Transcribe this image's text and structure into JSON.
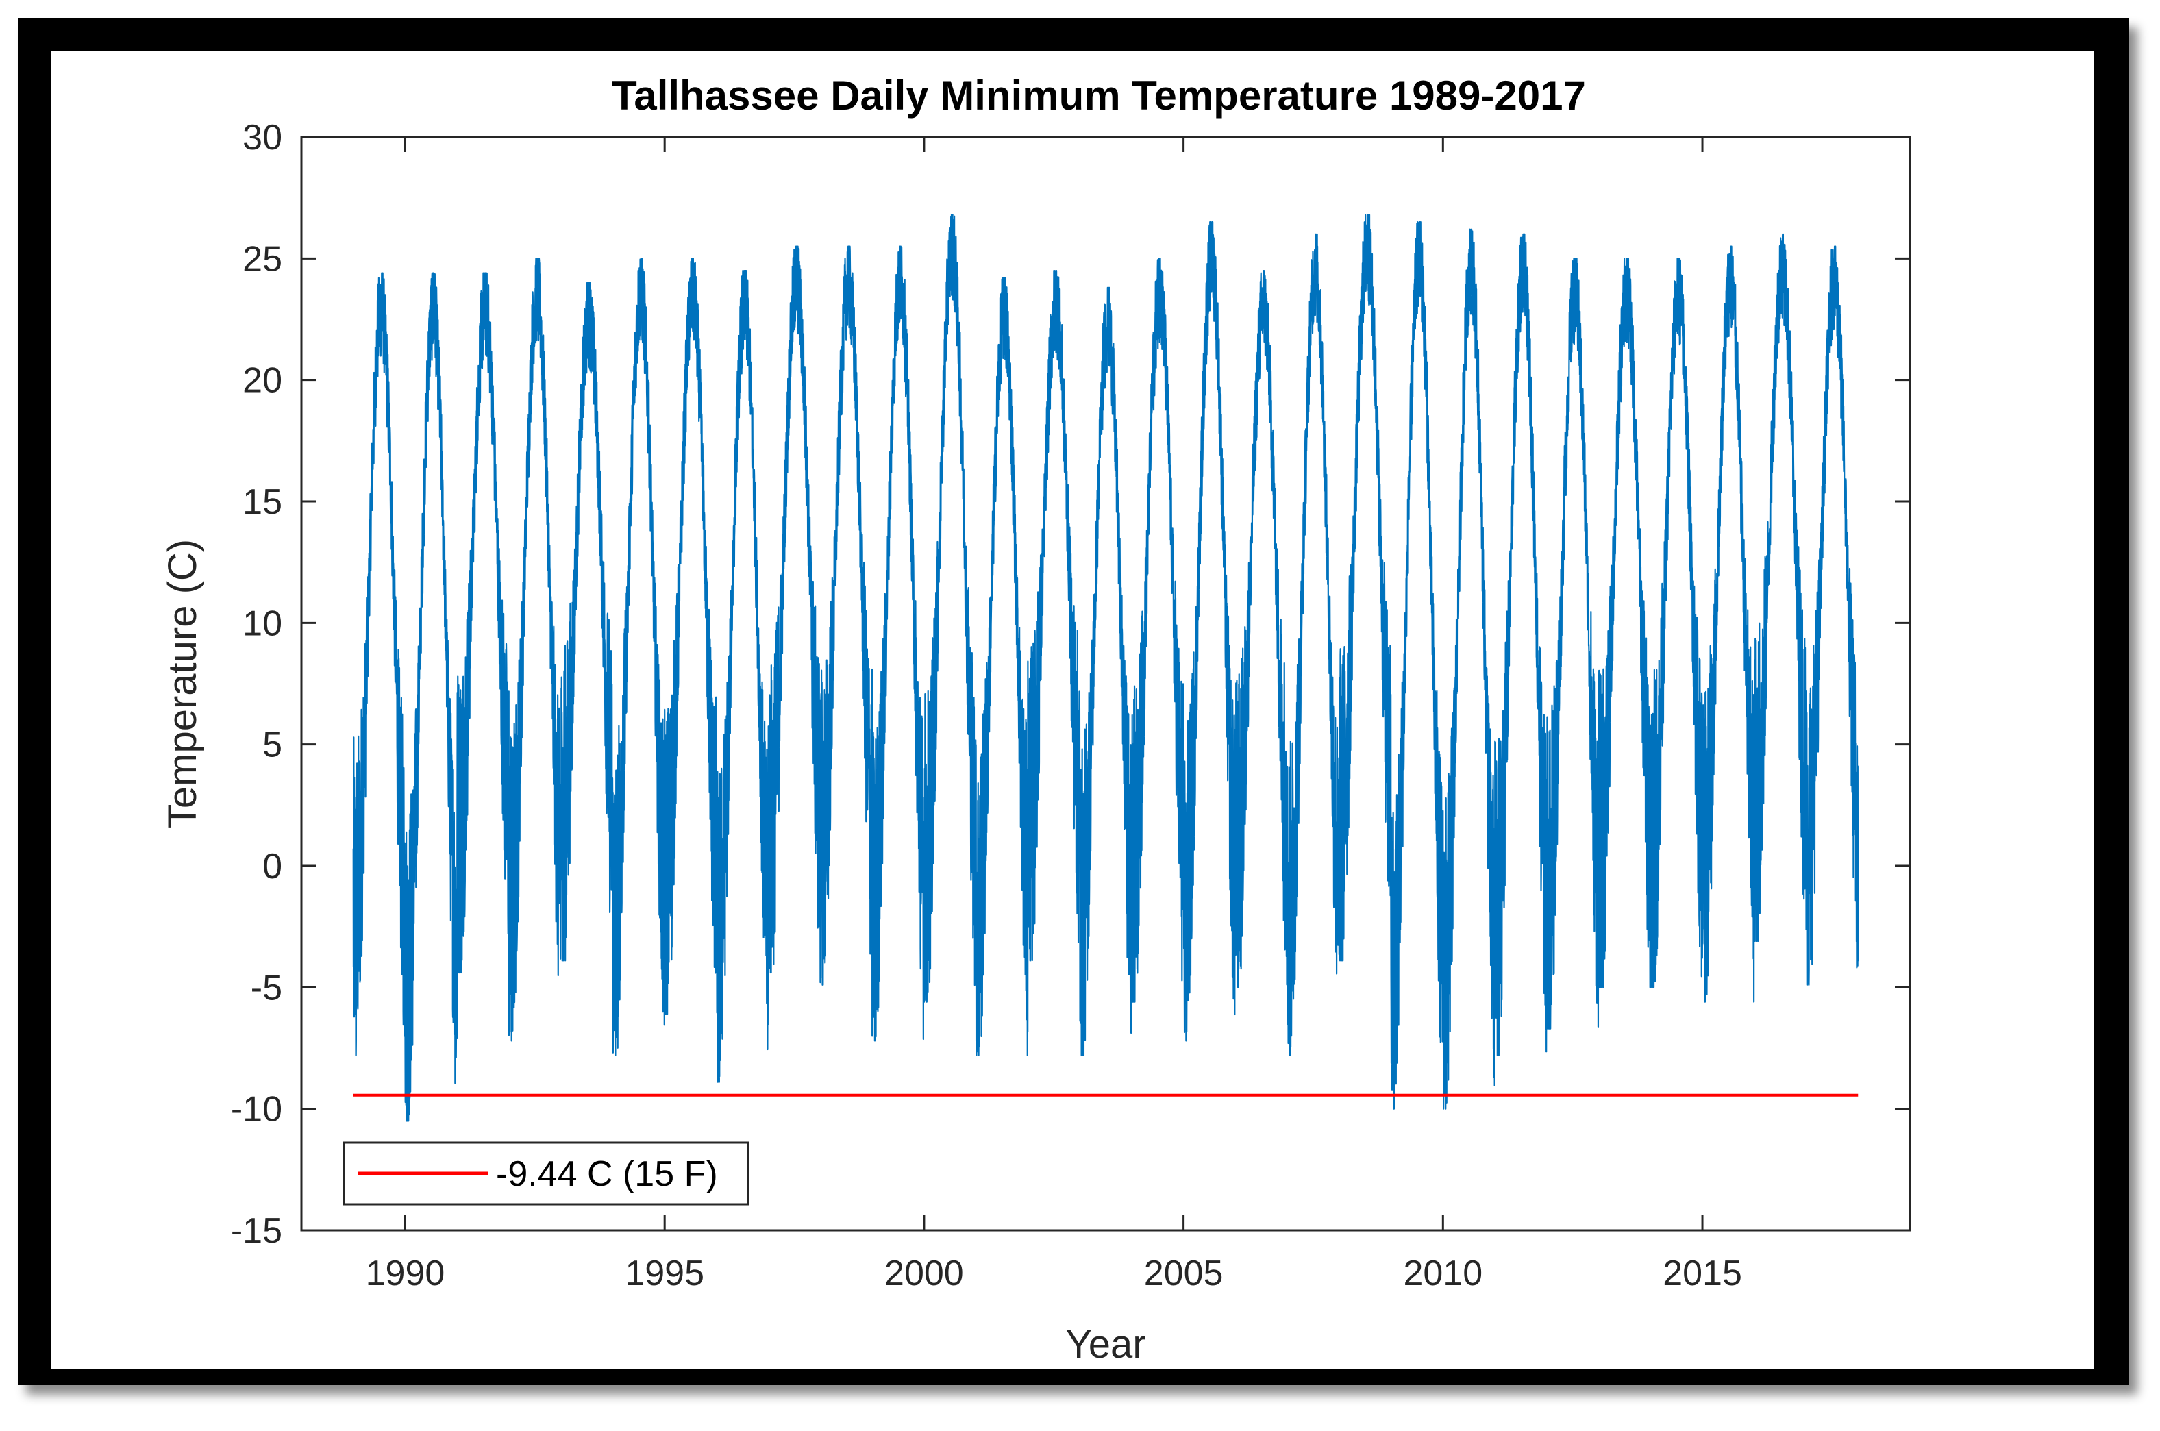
{
  "chart_data": {
    "type": "line",
    "title": "Tallhassee Daily Minimum Temperature 1989-2017",
    "xlabel": "Year",
    "ylabel": "Temperature (C)",
    "xlim": [
      1988,
      2019
    ],
    "ylim": [
      -15,
      30
    ],
    "x_ticks": [
      1990,
      1995,
      2000,
      2005,
      2010,
      2015
    ],
    "y_ticks": [
      30,
      25,
      20,
      15,
      10,
      5,
      0,
      -5,
      -10,
      -15
    ],
    "grid": false,
    "legend_position": "bottom-left",
    "series": [
      {
        "color": "#0072BD",
        "description_range": [
          1989.0,
          2018.0
        ],
        "yearly_max": [
          24.4,
          24.4,
          24.4,
          25.0,
          24.0,
          25.0,
          25.0,
          24.5,
          25.5,
          25.5,
          25.5,
          26.8,
          24.2,
          24.5,
          23.8,
          25.0,
          26.5,
          24.5,
          26.0,
          26.8,
          26.5,
          26.2,
          26.0,
          25.0,
          25.0,
          25.0,
          25.5,
          26.0,
          25.5
        ],
        "yearly_min": [
          -7.8,
          -10.5,
          -4.4,
          -7.2,
          -3.9,
          -7.8,
          -6.1,
          -8.9,
          -4.4,
          -4.9,
          -7.2,
          -5.6,
          -7.8,
          -3.9,
          -7.8,
          -5.6,
          -7.2,
          -5.0,
          -7.8,
          -3.9,
          -10.0,
          -10.0,
          -7.8,
          -6.7,
          -5.0,
          -5.0,
          -5.6,
          -3.1,
          -4.9
        ]
      },
      {
        "name": "-9.44 C (15 F)",
        "color": "#FF0000",
        "x": [
          1989.0,
          2018.0
        ],
        "y": [
          -9.44,
          -9.44
        ]
      }
    ]
  }
}
